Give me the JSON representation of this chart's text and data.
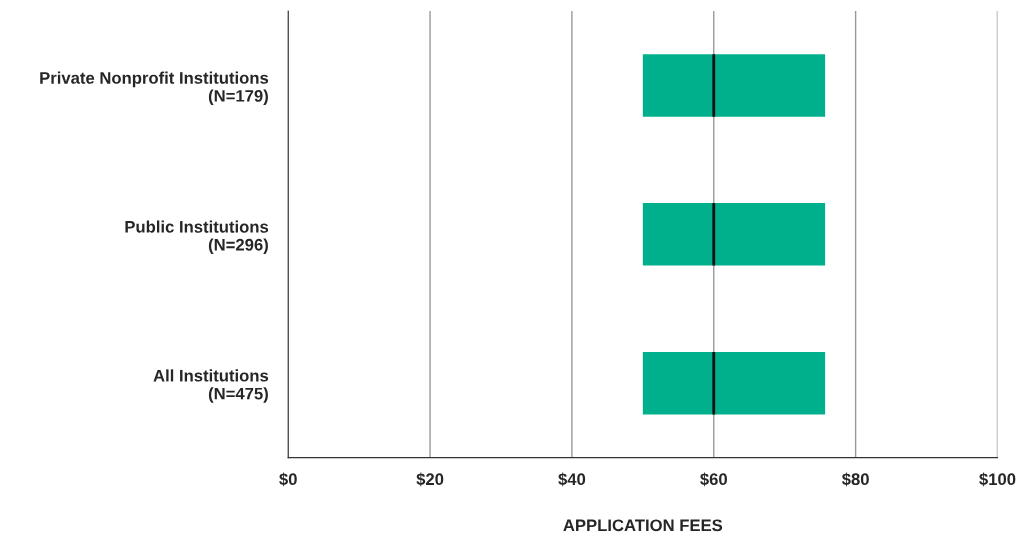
{
  "chart_data": {
    "type": "box",
    "orientation": "horizontal",
    "xlabel": "APPLICATION FEES",
    "categories": [
      "Private Nonprofit Institutions\n(N=179)",
      "Public Institutions\n(N=296)",
      "All Institutions\n(N=475)"
    ],
    "boxes": [
      {
        "low": 50,
        "q1": 50,
        "median": 60,
        "q3": 75.7,
        "high": 75.7
      },
      {
        "low": 50,
        "q1": 50,
        "median": 60,
        "q3": 75.7,
        "high": 75.7
      },
      {
        "low": 50,
        "q1": 50,
        "median": 60,
        "q3": 75.7,
        "high": 75.7
      }
    ],
    "color": "#00b08c",
    "xlim": [
      0,
      100
    ],
    "xticks": [
      {
        "value": 0,
        "label": "$0"
      },
      {
        "value": 20,
        "label": "$20"
      },
      {
        "value": 40,
        "label": "$40"
      },
      {
        "value": 60,
        "label": "$60"
      },
      {
        "value": 80,
        "label": "$80"
      },
      {
        "value": 100,
        "label": "$100"
      }
    ],
    "grid": "x"
  }
}
